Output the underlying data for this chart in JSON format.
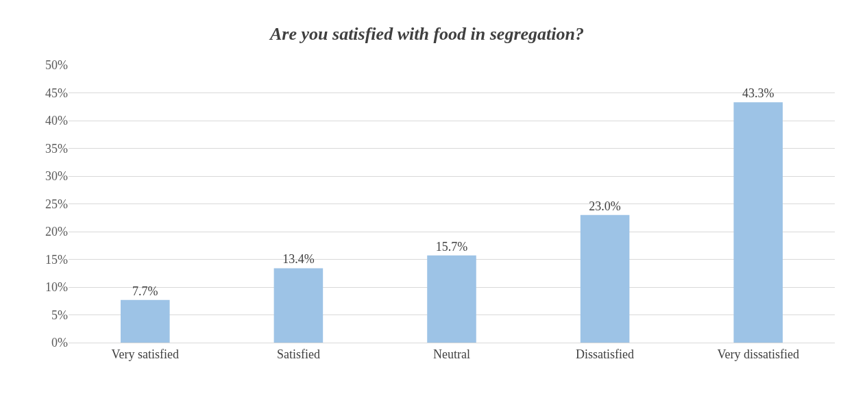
{
  "chart_data": {
    "type": "bar",
    "title": "Are you satisfied with food in segregation?",
    "categories": [
      "Very satisfied",
      "Satisfied",
      "Neutral",
      "Dissatisfied",
      "Very dissatisfied"
    ],
    "values": [
      7.7,
      13.4,
      15.7,
      23.0,
      43.3
    ],
    "value_labels": [
      "7.7%",
      "13.4%",
      "15.7%",
      "23.0%",
      "43.3%"
    ],
    "color": "#9dc3e6",
    "ylim": [
      0,
      50
    ],
    "yticks": [
      {
        "value": 0,
        "label": "0%"
      },
      {
        "value": 5,
        "label": "5%"
      },
      {
        "value": 10,
        "label": "10%"
      },
      {
        "value": 15,
        "label": "15%"
      },
      {
        "value": 20,
        "label": "20%"
      },
      {
        "value": 25,
        "label": "25%"
      },
      {
        "value": 30,
        "label": "30%"
      },
      {
        "value": 35,
        "label": "35%"
      },
      {
        "value": 40,
        "label": "40%"
      },
      {
        "value": 45,
        "label": "45%"
      },
      {
        "value": 50,
        "label": "50%"
      }
    ],
    "grid": "y",
    "legend": false
  }
}
